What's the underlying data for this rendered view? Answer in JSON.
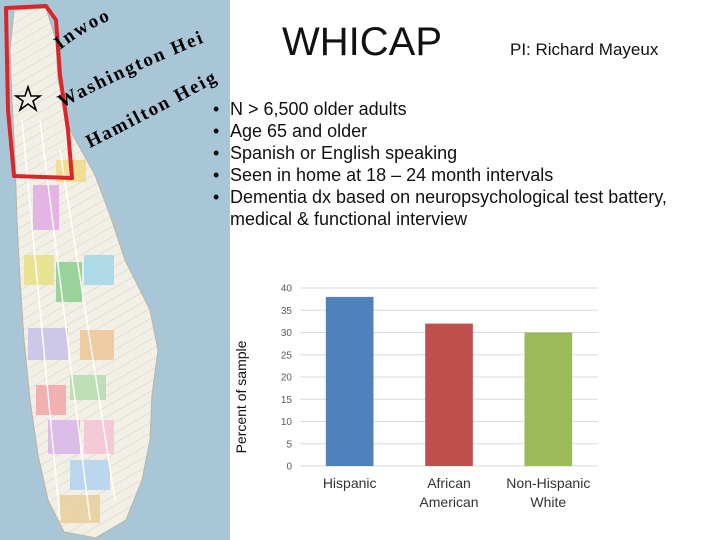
{
  "title": "WHICAP",
  "pi": "PI: Richard Mayeux",
  "bullets": [
    "N > 6,500 older adults",
    "Age 65 and older",
    "Spanish or English speaking",
    "Seen in home at 18 – 24 month intervals",
    "Dementia dx based on neuropsychological test battery, medical & functional interview"
  ],
  "map": {
    "labels": [
      "Inwood",
      "Washington Heights",
      "Hamilton Heights"
    ],
    "highlight_color": "#d9262b",
    "star_icon": "star-icon"
  },
  "chart_data": {
    "type": "bar",
    "categories": [
      "Hispanic",
      "African American",
      "Non-Hispanic White"
    ],
    "category_lines": [
      [
        "Hispanic"
      ],
      [
        "African",
        "American"
      ],
      [
        "Non-Hispanic",
        "White"
      ]
    ],
    "values": [
      38,
      32,
      30
    ],
    "colors": [
      "#4f81bd",
      "#c0504d",
      "#9bbb59"
    ],
    "xlabel": "",
    "ylabel": "Percent of sample",
    "ylim": [
      0,
      40
    ],
    "yticks": [
      0,
      5,
      10,
      15,
      20,
      25,
      30,
      35,
      40
    ],
    "grid": true
  }
}
